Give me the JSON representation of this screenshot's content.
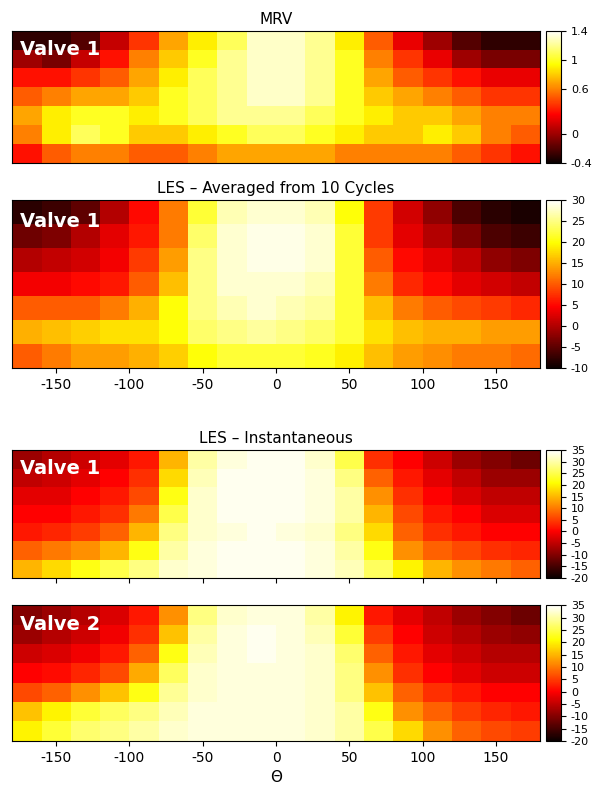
{
  "chart_data": [
    {
      "type": "heatmap",
      "title": "MRV",
      "annotations": [
        "Valve 1"
      ],
      "tick_labels": false,
      "xlim": [
        -180,
        180
      ],
      "colorbar": {
        "range": [
          -0.4,
          1.4
        ],
        "ticks": [
          -0.4,
          0,
          0.6,
          1,
          1.4
        ]
      },
      "cells": [
        [
          -0.3,
          -0.3,
          -0.2,
          0.1,
          0.4,
          0.7,
          0.9,
          1.1,
          1.3,
          1.3,
          1.2,
          0.9,
          0.5,
          0.2,
          0.0,
          -0.2,
          -0.3,
          -0.3
        ],
        [
          0.0,
          -0.1,
          0.1,
          0.3,
          0.6,
          0.8,
          1.0,
          1.2,
          1.3,
          1.3,
          1.2,
          1.0,
          0.6,
          0.4,
          0.2,
          0.0,
          -0.1,
          -0.1
        ],
        [
          0.3,
          0.3,
          0.4,
          0.5,
          0.7,
          0.9,
          1.1,
          1.2,
          1.3,
          1.3,
          1.2,
          1.0,
          0.7,
          0.5,
          0.4,
          0.3,
          0.2,
          0.2
        ],
        [
          0.5,
          0.6,
          0.7,
          0.7,
          0.8,
          1.0,
          1.1,
          1.2,
          1.3,
          1.3,
          1.2,
          1.0,
          0.8,
          0.7,
          0.6,
          0.5,
          0.4,
          0.4
        ],
        [
          0.7,
          0.9,
          1.0,
          1.0,
          0.9,
          1.0,
          1.1,
          1.2,
          1.2,
          1.2,
          1.1,
          1.0,
          0.9,
          0.8,
          0.8,
          0.7,
          0.6,
          0.6
        ],
        [
          0.6,
          0.9,
          1.1,
          1.0,
          0.8,
          0.8,
          0.9,
          1.0,
          1.1,
          1.1,
          1.0,
          0.9,
          0.8,
          0.8,
          0.9,
          0.8,
          0.6,
          0.5
        ],
        [
          0.3,
          0.5,
          0.6,
          0.6,
          0.5,
          0.5,
          0.6,
          0.7,
          0.7,
          0.7,
          0.7,
          0.6,
          0.6,
          0.6,
          0.6,
          0.5,
          0.4,
          0.3
        ]
      ]
    },
    {
      "type": "heatmap",
      "title": "LES – Averaged from 10 Cycles",
      "annotations": [
        "Valve 1"
      ],
      "tick_labels": "x",
      "xlim": [
        -180,
        180
      ],
      "xticks": [
        -150,
        -100,
        -50,
        0,
        50,
        100,
        150
      ],
      "colorbar": {
        "range": [
          -10,
          30
        ],
        "ticks": [
          -10,
          -5,
          0,
          5,
          10,
          15,
          20,
          25,
          30
        ]
      },
      "cells": [
        [
          -8,
          -7,
          -5,
          0,
          5,
          12,
          22,
          27,
          28,
          28,
          27,
          20,
          8,
          2,
          -2,
          -6,
          -8,
          -9
        ],
        [
          -4,
          -3,
          0,
          3,
          6,
          12,
          24,
          28,
          29,
          29,
          28,
          22,
          8,
          3,
          0,
          -3,
          -6,
          -7
        ],
        [
          0,
          1,
          2,
          4,
          8,
          14,
          25,
          28,
          29,
          29,
          28,
          22,
          10,
          5,
          3,
          1,
          -2,
          -3
        ],
        [
          4,
          4,
          5,
          6,
          10,
          16,
          25,
          28,
          28,
          28,
          27,
          22,
          12,
          7,
          5,
          3,
          2,
          1
        ],
        [
          10,
          10,
          10,
          12,
          15,
          20,
          25,
          27,
          28,
          27,
          26,
          22,
          16,
          12,
          10,
          9,
          8,
          7
        ],
        [
          15,
          16,
          17,
          18,
          18,
          20,
          24,
          25,
          26,
          25,
          24,
          22,
          18,
          16,
          15,
          15,
          14,
          14
        ],
        [
          10,
          12,
          14,
          14,
          15,
          17,
          20,
          22,
          22,
          22,
          21,
          19,
          16,
          14,
          13,
          12,
          12,
          11
        ]
      ]
    },
    {
      "type": "heatmap",
      "title": "LES – Instantaneous",
      "annotations": [
        "Valve 1"
      ],
      "tick_labels": false,
      "xlim": [
        -180,
        180
      ],
      "xticks": [
        -150,
        -100,
        -50,
        0,
        50,
        100,
        150
      ],
      "colorbar": {
        "range": [
          -20,
          35
        ],
        "ticks": [
          -20,
          -15,
          -10,
          -5,
          0,
          5,
          10,
          15,
          20,
          25,
          30,
          35
        ]
      },
      "cells": [
        [
          -8,
          -6,
          -4,
          -2,
          2,
          15,
          30,
          33,
          34,
          34,
          32,
          25,
          4,
          0,
          -4,
          -8,
          -10,
          -12
        ],
        [
          -5,
          -4,
          -2,
          0,
          4,
          18,
          31,
          34,
          34,
          34,
          33,
          28,
          8,
          2,
          -2,
          -5,
          -8,
          -8
        ],
        [
          -2,
          -2,
          0,
          2,
          6,
          22,
          32,
          34,
          34,
          34,
          33,
          30,
          12,
          4,
          0,
          -3,
          -5,
          -5
        ],
        [
          0,
          0,
          2,
          4,
          10,
          25,
          32,
          34,
          34,
          34,
          33,
          30,
          15,
          6,
          2,
          0,
          -3,
          -3
        ],
        [
          2,
          3,
          5,
          8,
          15,
          28,
          32,
          33,
          34,
          33,
          32,
          28,
          18,
          8,
          4,
          2,
          0,
          0
        ],
        [
          8,
          10,
          12,
          15,
          22,
          30,
          33,
          34,
          34,
          34,
          33,
          30,
          22,
          12,
          8,
          6,
          4,
          3
        ],
        [
          15,
          18,
          22,
          25,
          28,
          32,
          33,
          34,
          34,
          34,
          33,
          31,
          26,
          20,
          15,
          12,
          10,
          8
        ]
      ]
    },
    {
      "type": "heatmap",
      "xlabel": "Θ",
      "annotations": [
        "Valve 2"
      ],
      "tick_labels": "x",
      "xlim": [
        -180,
        180
      ],
      "xticks": [
        -150,
        -100,
        -50,
        0,
        50,
        100,
        150
      ],
      "colorbar": {
        "range": [
          -20,
          35
        ],
        "ticks": [
          -20,
          -15,
          -10,
          -5,
          0,
          5,
          10,
          15,
          20,
          25,
          30,
          35
        ]
      },
      "cells": [
        [
          -10,
          -8,
          -6,
          -3,
          2,
          12,
          28,
          32,
          33,
          33,
          30,
          20,
          2,
          -2,
          -5,
          -8,
          -10,
          -12
        ],
        [
          -8,
          -6,
          -4,
          -1,
          4,
          16,
          30,
          33,
          34,
          33,
          31,
          24,
          5,
          0,
          -4,
          -6,
          -8,
          -9
        ],
        [
          -4,
          -3,
          -1,
          2,
          8,
          22,
          31,
          33,
          34,
          33,
          32,
          27,
          8,
          2,
          -2,
          -4,
          -6,
          -6
        ],
        [
          0,
          1,
          3,
          6,
          14,
          26,
          32,
          33,
          33,
          33,
          32,
          28,
          12,
          4,
          0,
          -2,
          -4,
          -4
        ],
        [
          6,
          8,
          12,
          16,
          22,
          29,
          32,
          33,
          33,
          33,
          32,
          28,
          16,
          8,
          4,
          2,
          0,
          0
        ],
        [
          16,
          20,
          24,
          26,
          28,
          31,
          33,
          33,
          33,
          33,
          32,
          30,
          22,
          12,
          8,
          5,
          3,
          2
        ],
        [
          20,
          24,
          27,
          28,
          30,
          32,
          33,
          33,
          33,
          33,
          32,
          30,
          25,
          18,
          12,
          8,
          6,
          5
        ]
      ]
    }
  ]
}
